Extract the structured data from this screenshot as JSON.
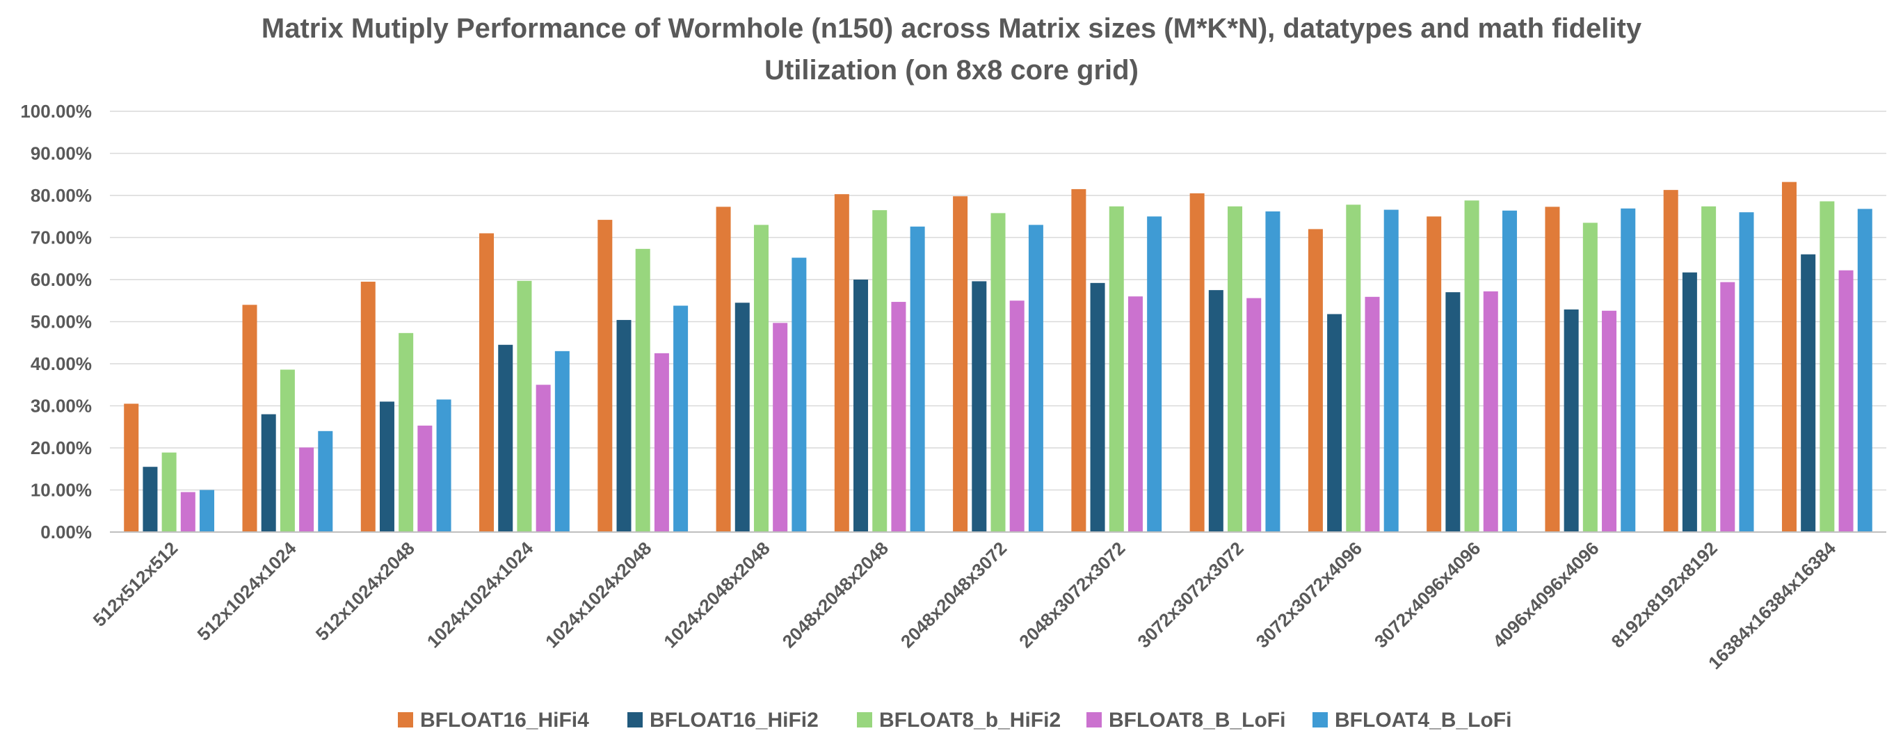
{
  "chart_data": {
    "type": "bar",
    "title": "Matrix Mutiply Performance of Wormhole (n150) across Matrix sizes (M*K*N), datatypes and math fidelity",
    "subtitle": "Utilization (on 8x8 core grid)",
    "xlabel": "",
    "ylabel": "",
    "ylim": [
      0,
      100
    ],
    "y_tick_labels": [
      "0.00%",
      "10.00%",
      "20.00%",
      "30.00%",
      "40.00%",
      "50.00%",
      "60.00%",
      "70.00%",
      "80.00%",
      "90.00%",
      "100.00%"
    ],
    "grid": true,
    "legend_position": "bottom",
    "categories": [
      "512x512x512",
      "512x1024x1024",
      "512x1024x2048",
      "1024x1024x1024",
      "1024x1024x2048",
      "1024x2048x2048",
      "2048x2048x2048",
      "2048x2048x3072",
      "2048x3072x3072",
      "3072x3072x3072",
      "3072x3072x4096",
      "3072x4096x4096",
      "4096x4096x4096",
      "8192x8192x8192",
      "16384x16384x16384"
    ],
    "series": [
      {
        "name": "BFLOAT16_HiFi4",
        "color": "#E07B39",
        "values": [
          30.5,
          54,
          59.5,
          71,
          74.2,
          77.3,
          80.3,
          79.8,
          81.5,
          80.5,
          72,
          75,
          77.3,
          81.3,
          83.2
        ]
      },
      {
        "name": "BFLOAT16_HiFi2",
        "color": "#215A7D",
        "values": [
          15.5,
          28,
          31,
          44.5,
          50.4,
          54.5,
          60,
          59.6,
          59.2,
          57.5,
          51.8,
          57,
          52.9,
          61.7,
          66
        ]
      },
      {
        "name": "BFLOAT8_b_HiFi2",
        "color": "#98D67E",
        "values": [
          18.9,
          38.6,
          47.3,
          59.7,
          67.3,
          73,
          76.5,
          75.8,
          77.4,
          77.4,
          77.8,
          78.8,
          73.5,
          77.4,
          78.6
        ]
      },
      {
        "name": "BFLOAT8_B_LoFi",
        "color": "#CB72CF",
        "values": [
          9.5,
          20.1,
          25.3,
          35,
          42.5,
          49.7,
          54.7,
          55,
          56,
          55.6,
          55.9,
          57.2,
          52.6,
          59.4,
          62.2
        ]
      },
      {
        "name": "BFLOAT4_B_LoFi",
        "color": "#3F9BD4",
        "values": [
          10,
          24,
          31.5,
          43,
          53.8,
          65.2,
          72.6,
          73,
          75,
          76.2,
          76.6,
          76.4,
          76.9,
          76,
          76.8
        ]
      }
    ]
  }
}
